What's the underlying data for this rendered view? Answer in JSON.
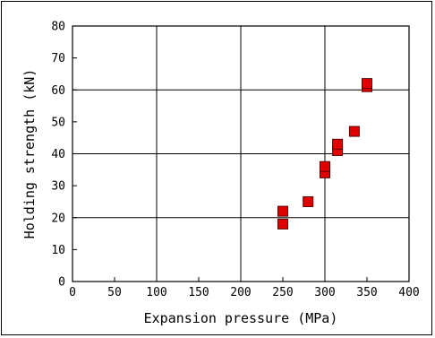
{
  "chart_data": {
    "type": "scatter",
    "title": "",
    "xlabel": "Expansion pressure (MPa)",
    "ylabel": "Holding strength (kN)",
    "xlim": [
      0,
      400
    ],
    "ylim": [
      0,
      80
    ],
    "xticks": [
      0,
      50,
      100,
      150,
      200,
      250,
      300,
      350,
      400
    ],
    "yticks": [
      0,
      10,
      20,
      30,
      40,
      50,
      60,
      70,
      80
    ],
    "xgrid": [
      100,
      200,
      300
    ],
    "ygrid": [
      20,
      40,
      60
    ],
    "grid": true,
    "marker": "square",
    "marker_color": "#e00000",
    "points": [
      {
        "x": 250,
        "y": 18
      },
      {
        "x": 250,
        "y": 22
      },
      {
        "x": 280,
        "y": 25
      },
      {
        "x": 300,
        "y": 34
      },
      {
        "x": 300,
        "y": 36
      },
      {
        "x": 315,
        "y": 41
      },
      {
        "x": 315,
        "y": 43
      },
      {
        "x": 335,
        "y": 47
      },
      {
        "x": 350,
        "y": 61
      },
      {
        "x": 350,
        "y": 62
      }
    ]
  }
}
